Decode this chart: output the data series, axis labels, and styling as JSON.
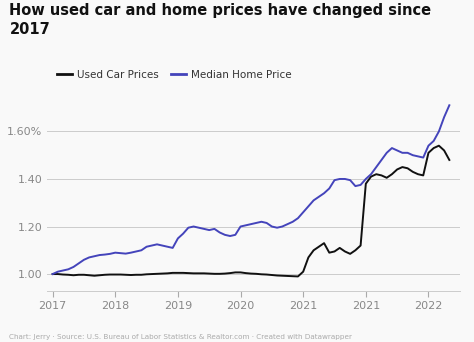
{
  "title": "How used car and home prices have changed since\n2017",
  "caption": "Chart: Jerry · Source: U.S. Bureau of Labor Statistics & Realtor.com · Created with Datawrapper",
  "legend": [
    "Used Car Prices",
    "Median Home Price"
  ],
  "legend_colors": [
    "#111111",
    "#4444bb"
  ],
  "background_color": "#f9f9f9",
  "ylim": [
    0.93,
    1.75
  ],
  "yticks": [
    1.0,
    1.2,
    1.4,
    1.6
  ],
  "ytick_labels": [
    "1.00",
    "1.20",
    "1.40",
    "1.60%"
  ],
  "xtick_positions": [
    0,
    12,
    24,
    36,
    48,
    60,
    72
  ],
  "xtick_labels": [
    "2017",
    "2018",
    "2019",
    "2020",
    "2021",
    "2021",
    "2022"
  ],
  "xlim": [
    -1,
    78
  ],
  "car_prices": [
    1.0,
    1.0,
    0.998,
    0.997,
    0.995,
    0.997,
    0.997,
    0.995,
    0.993,
    0.995,
    0.997,
    0.998,
    0.998,
    0.998,
    0.997,
    0.996,
    0.997,
    0.997,
    0.999,
    1.0,
    1.001,
    1.002,
    1.003,
    1.005,
    1.005,
    1.005,
    1.004,
    1.003,
    1.003,
    1.003,
    1.002,
    1.001,
    1.001,
    1.002,
    1.004,
    1.007,
    1.007,
    1.004,
    1.002,
    1.001,
    0.999,
    0.998,
    0.996,
    0.994,
    0.993,
    0.992,
    0.991,
    0.99,
    1.01,
    1.07,
    1.1,
    1.115,
    1.13,
    1.09,
    1.095,
    1.11,
    1.095,
    1.085,
    1.1,
    1.12,
    1.38,
    1.41,
    1.42,
    1.415,
    1.405,
    1.42,
    1.44,
    1.45,
    1.445,
    1.43,
    1.42,
    1.415,
    1.51,
    1.53,
    1.54,
    1.52,
    1.48
  ],
  "home_prices": [
    1.0,
    1.01,
    1.015,
    1.02,
    1.03,
    1.045,
    1.06,
    1.07,
    1.075,
    1.08,
    1.082,
    1.085,
    1.09,
    1.088,
    1.086,
    1.09,
    1.095,
    1.1,
    1.115,
    1.12,
    1.125,
    1.12,
    1.115,
    1.11,
    1.15,
    1.17,
    1.195,
    1.2,
    1.195,
    1.19,
    1.185,
    1.19,
    1.175,
    1.165,
    1.16,
    1.165,
    1.2,
    1.205,
    1.21,
    1.215,
    1.22,
    1.215,
    1.2,
    1.195,
    1.2,
    1.21,
    1.22,
    1.235,
    1.26,
    1.285,
    1.31,
    1.325,
    1.34,
    1.36,
    1.395,
    1.4,
    1.4,
    1.395,
    1.37,
    1.375,
    1.4,
    1.42,
    1.45,
    1.48,
    1.51,
    1.53,
    1.52,
    1.51,
    1.51,
    1.5,
    1.495,
    1.49,
    1.54,
    1.56,
    1.6,
    1.66,
    1.71
  ]
}
